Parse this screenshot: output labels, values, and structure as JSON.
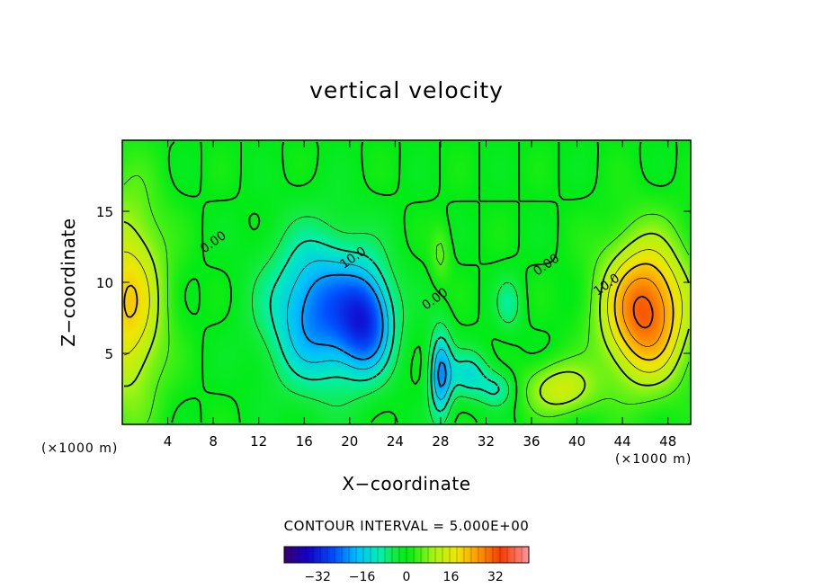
{
  "chart_data": {
    "type": "heatmap",
    "title": "vertical velocity",
    "xlabel": "X−coordinate",
    "ylabel": "Z−coordinate",
    "x_unit": "(×1000 m)",
    "x_unit_right": "(×1000 m)",
    "xlim": [
      0,
      50
    ],
    "ylim": [
      0,
      20
    ],
    "x_ticks": [
      4,
      8,
      12,
      16,
      20,
      24,
      28,
      32,
      36,
      40,
      44,
      48
    ],
    "y_ticks": [
      5,
      10,
      15
    ],
    "contour_interval_label": "CONTOUR INTERVAL = 5.000E+00",
    "contour_labels": [
      {
        "text": "0.00",
        "x": 8.2,
        "y": 12.6
      },
      {
        "text": "10.0",
        "x": 20.5,
        "y": 11.5
      },
      {
        "text": "0.00",
        "x": 27.7,
        "y": 8.6
      },
      {
        "text": "0.00",
        "x": 37.5,
        "y": 11.0
      },
      {
        "text": "10.0",
        "x": 42.8,
        "y": 9.6
      }
    ],
    "field_features": [
      {
        "x": 17.5,
        "z": 8.0,
        "value": -24
      },
      {
        "x": 21.5,
        "z": 7.2,
        "value": -22
      },
      {
        "x": 28.0,
        "z": 3.5,
        "value": -20
      },
      {
        "x": 30.5,
        "z": 3.5,
        "value": -12
      },
      {
        "x": 33.0,
        "z": 2.5,
        "value": -10
      },
      {
        "x": 34.0,
        "z": 8.5,
        "value": -8
      },
      {
        "x": 46.0,
        "z": 8.0,
        "value": 32
      },
      {
        "x": 0.5,
        "z": 8.5,
        "value": 20
      },
      {
        "x": 38.5,
        "z": 2.5,
        "value": 14
      },
      {
        "x": 28.0,
        "z": 12.0,
        "value": 6
      }
    ],
    "colorbar": {
      "min": -44,
      "max": 44,
      "ticks": [
        -32,
        -16,
        0,
        16,
        32
      ],
      "tick_labels": [
        "−32",
        "−16",
        "0",
        "16",
        "32"
      ]
    }
  }
}
